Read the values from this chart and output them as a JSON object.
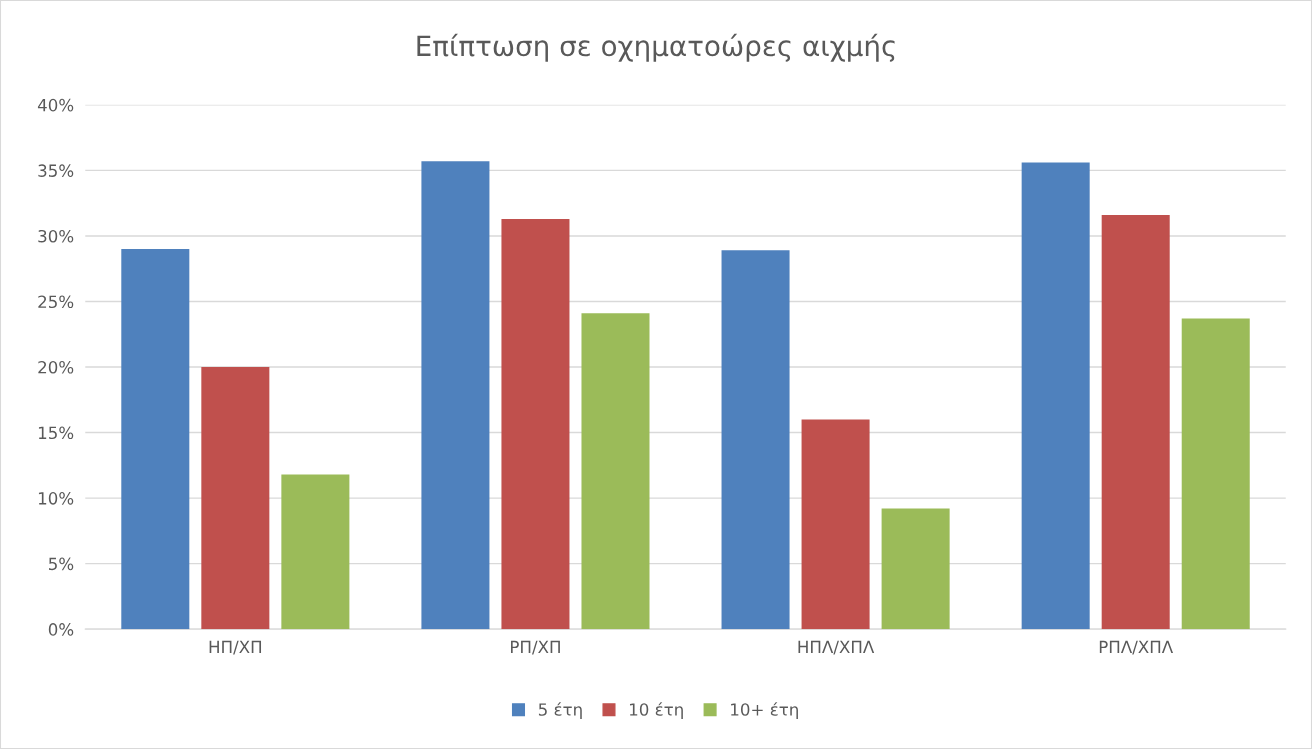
{
  "chart_data": {
    "type": "bar",
    "title": "Επίπτωση σε οχηματοώρες αιχμής",
    "categories": [
      "ΗΠ/ΧΠ",
      "ΡΠ/ΧΠ",
      "ΗΠΛ/ΧΠΛ",
      "ΡΠΛ/ΧΠΛ"
    ],
    "series": [
      {
        "name": "5 έτη",
        "color": "#4f81bd",
        "values": [
          29.0,
          35.7,
          28.9,
          35.6
        ]
      },
      {
        "name": "10 έτη",
        "color": "#c0504d",
        "values": [
          20.0,
          31.3,
          16.0,
          31.6
        ]
      },
      {
        "name": "10+ έτη",
        "color": "#9bbb59",
        "values": [
          11.8,
          24.1,
          9.2,
          23.7
        ]
      }
    ],
    "ylim": [
      0,
      40
    ],
    "yticks": [
      {
        "value": 0,
        "label": "0%"
      },
      {
        "value": 5,
        "label": "5%"
      },
      {
        "value": 10,
        "label": "10%"
      },
      {
        "value": 15,
        "label": "15%"
      },
      {
        "value": 20,
        "label": "20%"
      },
      {
        "value": 25,
        "label": "25%"
      },
      {
        "value": 30,
        "label": "30%"
      },
      {
        "value": 35,
        "label": "35%"
      },
      {
        "value": 40,
        "label": "40%"
      }
    ],
    "grid": "y",
    "legend": "bottom"
  }
}
